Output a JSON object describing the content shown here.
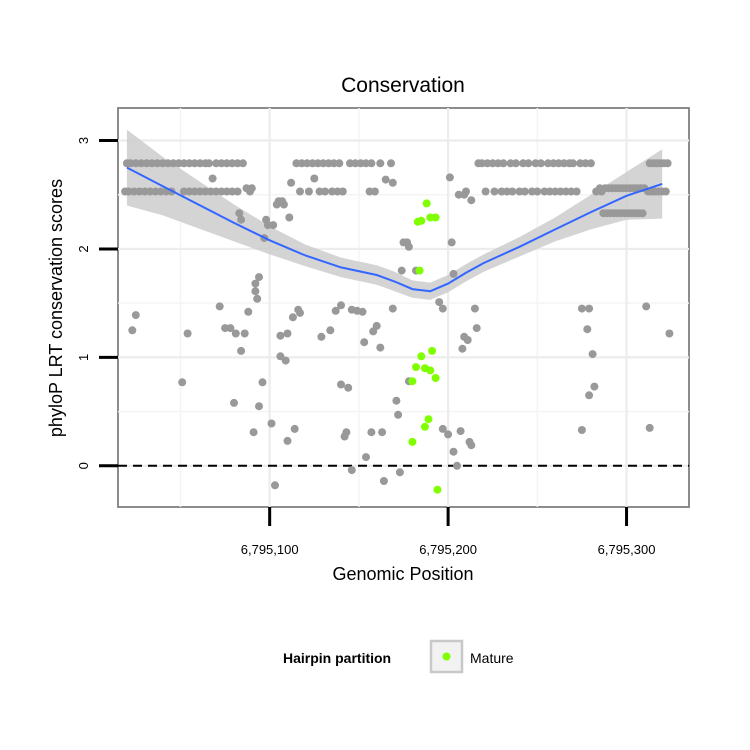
{
  "chart_data": {
    "type": "scatter",
    "title": "Conservation",
    "xlabel": "Genomic Position",
    "ylabel": "phyloP LRT conservation scores",
    "xlim": [
      6795015,
      6795335
    ],
    "ylim": [
      -0.38,
      3.3
    ],
    "x_ticks": [
      6795100,
      6795200,
      6795300
    ],
    "x_tick_labels": [
      "6,795,100",
      "6,795,200",
      "6,795,300"
    ],
    "y_ticks": [
      0,
      1,
      2,
      3
    ],
    "y_tick_labels": [
      "0",
      "1",
      "2",
      "3"
    ],
    "grid": true,
    "reference_line": {
      "y": 0,
      "style": "dashed"
    },
    "legend": {
      "title": "Hairpin partition",
      "entries": [
        "Mature"
      ],
      "placement": "bottom"
    },
    "colors": {
      "other": "#999999",
      "mature": "#80ff00",
      "smooth": "#3366ff",
      "ribbon": "#cccccc"
    },
    "series": [
      {
        "points": [
          [
            6795019,
            2.53
          ],
          [
            6795020,
            2.79
          ],
          [
            6795021,
            2.53
          ],
          [
            6795022,
            2.79
          ],
          [
            6795023,
            1.25
          ],
          [
            6795024,
            2.53
          ],
          [
            6795025,
            2.79
          ],
          [
            6795025,
            1.39
          ],
          [
            6795027,
            2.53
          ],
          [
            6795028,
            2.79
          ],
          [
            6795030,
            2.53
          ],
          [
            6795031,
            2.79
          ],
          [
            6795033,
            2.53
          ],
          [
            6795034,
            2.79
          ],
          [
            6795036,
            2.53
          ],
          [
            6795037,
            2.79
          ],
          [
            6795039,
            2.53
          ],
          [
            6795040,
            2.79
          ],
          [
            6795042,
            2.53
          ],
          [
            6795043,
            2.79
          ],
          [
            6795045,
            2.53
          ],
          [
            6795046,
            2.79
          ],
          [
            6795049,
            2.79
          ],
          [
            6795051,
            0.77
          ],
          [
            6795052,
            2.53
          ],
          [
            6795052,
            2.79
          ],
          [
            6795054,
            1.22
          ],
          [
            6795055,
            2.53
          ],
          [
            6795055,
            2.79
          ],
          [
            6795058,
            2.53
          ],
          [
            6795058,
            2.79
          ],
          [
            6795061,
            2.53
          ],
          [
            6795061,
            2.79
          ],
          [
            6795064,
            2.53
          ],
          [
            6795064,
            2.79
          ],
          [
            6795066,
            2.79
          ],
          [
            6795067,
            2.53
          ],
          [
            6795068,
            2.65
          ],
          [
            6795070,
            2.53
          ],
          [
            6795070,
            2.79
          ],
          [
            6795072,
            1.47
          ],
          [
            6795073,
            2.53
          ],
          [
            6795073,
            2.79
          ],
          [
            6795075,
            1.27
          ],
          [
            6795076,
            2.53
          ],
          [
            6795076,
            2.79
          ],
          [
            6795078,
            1.27
          ],
          [
            6795079,
            2.53
          ],
          [
            6795079,
            2.79
          ],
          [
            6795080,
            0.58
          ],
          [
            6795081,
            1.22
          ],
          [
            6795082,
            2.53
          ],
          [
            6795082,
            2.79
          ],
          [
            6795083,
            2.33
          ],
          [
            6795084,
            2.27
          ],
          [
            6795084,
            1.06
          ],
          [
            6795085,
            2.79
          ],
          [
            6795086,
            1.22
          ],
          [
            6795087,
            2.56
          ],
          [
            6795088,
            1.42
          ],
          [
            6795089,
            2.53
          ],
          [
            6795090,
            2.56
          ],
          [
            6795091,
            0.31
          ],
          [
            6795092,
            1.61
          ],
          [
            6795092,
            1.68
          ],
          [
            6795093,
            1.54
          ],
          [
            6795094,
            1.74
          ],
          [
            6795094,
            0.55
          ],
          [
            6795096,
            0.77
          ],
          [
            6795097,
            2.1
          ],
          [
            6795098,
            2.27
          ],
          [
            6795099,
            2.22
          ],
          [
            6795101,
            0.39
          ],
          [
            6795102,
            2.22
          ],
          [
            6795103,
            -0.18
          ],
          [
            6795104,
            2.41
          ],
          [
            6795105,
            2.44
          ],
          [
            6795106,
            1.01
          ],
          [
            6795106,
            1.2
          ],
          [
            6795107,
            2.44
          ],
          [
            6795108,
            2.41
          ],
          [
            6795109,
            0.97
          ],
          [
            6795110,
            0.23
          ],
          [
            6795110,
            1.22
          ],
          [
            6795111,
            2.29
          ],
          [
            6795112,
            2.61
          ],
          [
            6795113,
            1.37
          ],
          [
            6795114,
            0.34
          ],
          [
            6795115,
            2.79
          ],
          [
            6795116,
            1.44
          ],
          [
            6795117,
            1.41
          ],
          [
            6795117,
            2.53
          ],
          [
            6795118,
            2.79
          ],
          [
            6795121,
            2.79
          ],
          [
            6795122,
            2.53
          ],
          [
            6795124,
            2.79
          ],
          [
            6795125,
            2.65
          ],
          [
            6795127,
            2.79
          ],
          [
            6795128,
            2.53
          ],
          [
            6795129,
            1.19
          ],
          [
            6795130,
            2.79
          ],
          [
            6795131,
            2.53
          ],
          [
            6795133,
            2.79
          ],
          [
            6795134,
            1.25
          ],
          [
            6795135,
            2.53
          ],
          [
            6795136,
            2.79
          ],
          [
            6795137,
            1.43
          ],
          [
            6795138,
            2.53
          ],
          [
            6795139,
            2.79
          ],
          [
            6795140,
            0.75
          ],
          [
            6795140,
            1.48
          ],
          [
            6795141,
            2.53
          ],
          [
            6795142,
            0.27
          ],
          [
            6795143,
            0.31
          ],
          [
            6795144,
            0.72
          ],
          [
            6795145,
            2.79
          ],
          [
            6795146,
            1.44
          ],
          [
            6795146,
            -0.04
          ],
          [
            6795148,
            2.79
          ],
          [
            6795149,
            1.43
          ],
          [
            6795151,
            2.79
          ],
          [
            6795152,
            1.42
          ],
          [
            6795153,
            1.14
          ],
          [
            6795154,
            2.79
          ],
          [
            6795154,
            0.08
          ],
          [
            6795156,
            2.53
          ],
          [
            6795157,
            0.31
          ],
          [
            6795157,
            2.79
          ],
          [
            6795158,
            1.24
          ],
          [
            6795159,
            2.53
          ],
          [
            6795160,
            1.29
          ],
          [
            6795162,
            2.79
          ],
          [
            6795162,
            1.09
          ],
          [
            6795163,
            0.31
          ],
          [
            6795164,
            -0.14
          ],
          [
            6795165,
            2.64
          ],
          [
            6795168,
            2.79
          ],
          [
            6795169,
            2.61
          ],
          [
            6795169,
            1.45
          ],
          [
            6795171,
            0.6
          ],
          [
            6795172,
            0.47
          ],
          [
            6795173,
            -0.06
          ],
          [
            6795174,
            1.8
          ],
          [
            6795175,
            2.06
          ],
          [
            6795177,
            2.06
          ],
          [
            6795178,
            0.78
          ],
          [
            6795178,
            2.02
          ],
          [
            6795182,
            1.8
          ],
          [
            6795195,
            1.51
          ],
          [
            6795197,
            1.45
          ],
          [
            6795197,
            0.34
          ],
          [
            6795200,
            0.29
          ],
          [
            6795201,
            2.66
          ],
          [
            6795202,
            2.06
          ],
          [
            6795203,
            1.77
          ],
          [
            6795203,
            0.13
          ],
          [
            6795205,
            0.0
          ],
          [
            6795206,
            2.5
          ],
          [
            6795207,
            0.32
          ],
          [
            6795208,
            1.08
          ],
          [
            6795209,
            2.5
          ],
          [
            6795209,
            1.19
          ],
          [
            6795210,
            2.53
          ],
          [
            6795211,
            1.16
          ],
          [
            6795212,
            0.22
          ],
          [
            6795213,
            0.19
          ],
          [
            6795213,
            2.45
          ],
          [
            6795215,
            1.45
          ],
          [
            6795216,
            1.27
          ],
          [
            6795217,
            2.79
          ],
          [
            6795219,
            2.79
          ],
          [
            6795221,
            2.53
          ],
          [
            6795222,
            2.79
          ],
          [
            6795225,
            2.79
          ],
          [
            6795226,
            2.53
          ],
          [
            6795228,
            2.79
          ],
          [
            6795230,
            2.53
          ],
          [
            6795231,
            2.79
          ],
          [
            6795233,
            2.53
          ],
          [
            6795235,
            2.79
          ],
          [
            6795236,
            2.53
          ],
          [
            6795238,
            2.79
          ],
          [
            6795240,
            2.53
          ],
          [
            6795242,
            2.79
          ],
          [
            6795243,
            2.53
          ],
          [
            6795245,
            2.79
          ],
          [
            6795247,
            2.53
          ],
          [
            6795249,
            2.79
          ],
          [
            6795250,
            2.53
          ],
          [
            6795252,
            2.79
          ],
          [
            6795254,
            2.53
          ],
          [
            6795256,
            2.79
          ],
          [
            6795257,
            2.53
          ],
          [
            6795259,
            2.79
          ],
          [
            6795260,
            2.53
          ],
          [
            6795262,
            2.79
          ],
          [
            6795263,
            2.53
          ],
          [
            6795265,
            2.79
          ],
          [
            6795266,
            2.53
          ],
          [
            6795268,
            2.79
          ],
          [
            6795269,
            2.53
          ],
          [
            6795270,
            2.79
          ],
          [
            6795272,
            2.53
          ],
          [
            6795274,
            2.79
          ],
          [
            6795277,
            2.79
          ],
          [
            6795280,
            2.79
          ],
          [
            6795275,
            1.45
          ],
          [
            6795275,
            0.33
          ],
          [
            6795278,
            1.26
          ],
          [
            6795279,
            0.65
          ],
          [
            6795279,
            1.45
          ],
          [
            6795281,
            1.03
          ],
          [
            6795282,
            0.73
          ],
          [
            6795283,
            2.53
          ],
          [
            6795285,
            2.56
          ],
          [
            6795286,
            2.53
          ],
          [
            6795287,
            2.33
          ],
          [
            6795288,
            2.56
          ],
          [
            6795289,
            2.33
          ],
          [
            6795290,
            2.56
          ],
          [
            6795291,
            2.33
          ],
          [
            6795292,
            2.56
          ],
          [
            6795293,
            2.33
          ],
          [
            6795294,
            2.56
          ],
          [
            6795295,
            2.33
          ],
          [
            6795296,
            2.56
          ],
          [
            6795297,
            2.33
          ],
          [
            6795298,
            2.56
          ],
          [
            6795299,
            2.33
          ],
          [
            6795300,
            2.56
          ],
          [
            6795301,
            2.33
          ],
          [
            6795302,
            2.56
          ],
          [
            6795303,
            2.33
          ],
          [
            6795304,
            2.56
          ],
          [
            6795305,
            2.33
          ],
          [
            6795306,
            2.56
          ],
          [
            6795307,
            2.33
          ],
          [
            6795308,
            2.56
          ],
          [
            6795309,
            2.33
          ],
          [
            6795310,
            2.56
          ],
          [
            6795311,
            1.47
          ],
          [
            6795312,
            2.53
          ],
          [
            6795313,
            0.35
          ],
          [
            6795313,
            2.79
          ],
          [
            6795314,
            2.53
          ],
          [
            6795315,
            2.79
          ],
          [
            6795316,
            2.53
          ],
          [
            6795317,
            2.79
          ],
          [
            6795318,
            2.53
          ],
          [
            6795319,
            2.79
          ],
          [
            6795320,
            2.53
          ],
          [
            6795321,
            2.79
          ],
          [
            6795322,
            2.53
          ],
          [
            6795323,
            2.79
          ],
          [
            6795324,
            1.22
          ]
        ]
      },
      {
        "name": "Mature",
        "points": [
          [
            6795183,
            2.25
          ],
          [
            6795185,
            2.26
          ],
          [
            6795188,
            2.42
          ],
          [
            6795190,
            2.29
          ],
          [
            6795193,
            2.29
          ],
          [
            6795184,
            1.8
          ],
          [
            6795185,
            1.01
          ],
          [
            6795187,
            0.9
          ],
          [
            6795190,
            0.88
          ],
          [
            6795191,
            1.06
          ],
          [
            6795193,
            0.81
          ],
          [
            6795180,
            0.78
          ],
          [
            6795189,
            0.43
          ],
          [
            6795187,
            0.36
          ],
          [
            6795180,
            0.22
          ],
          [
            6795194,
            -0.22
          ],
          [
            6795182,
            0.91
          ]
        ]
      }
    ],
    "smooth": {
      "x": [
        6795020,
        6795040,
        6795060,
        6795080,
        6795100,
        6795120,
        6795140,
        6795160,
        6795170,
        6795180,
        6795190,
        6795200,
        6795210,
        6795220,
        6795240,
        6795260,
        6795280,
        6795300,
        6795320
      ],
      "y": [
        2.75,
        2.58,
        2.41,
        2.24,
        2.08,
        1.94,
        1.83,
        1.76,
        1.7,
        1.63,
        1.61,
        1.68,
        1.78,
        1.87,
        2.02,
        2.18,
        2.34,
        2.49,
        2.6
      ],
      "ribbon_low": [
        2.4,
        2.31,
        2.19,
        2.07,
        1.95,
        1.84,
        1.74,
        1.67,
        1.61,
        1.55,
        1.53,
        1.6,
        1.7,
        1.79,
        1.93,
        2.07,
        2.18,
        2.27,
        2.28
      ],
      "ribbon_high": [
        3.1,
        2.85,
        2.63,
        2.41,
        2.21,
        2.04,
        1.92,
        1.85,
        1.79,
        1.71,
        1.69,
        1.76,
        1.86,
        1.95,
        2.11,
        2.29,
        2.5,
        2.71,
        2.92
      ]
    }
  }
}
